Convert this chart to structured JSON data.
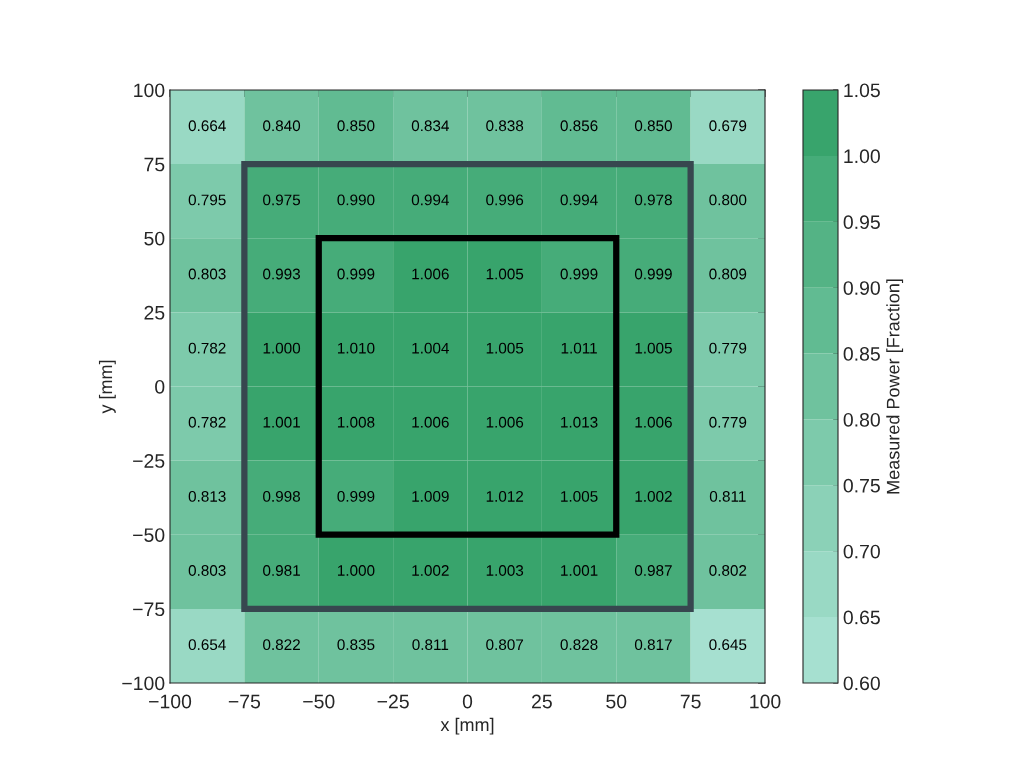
{
  "chart_data": {
    "type": "heatmap",
    "xlabel": "x [mm]",
    "ylabel": "y [mm]",
    "clabel": "Measured Power [Fraction]",
    "xlim": [
      -100,
      100
    ],
    "ylim": [
      -100,
      100
    ],
    "xticks": [
      {
        "value": -100,
        "label": "−100"
      },
      {
        "value": -75,
        "label": "−75"
      },
      {
        "value": -50,
        "label": "−50"
      },
      {
        "value": -25,
        "label": "−25"
      },
      0,
      25,
      50,
      75,
      100
    ],
    "yticks": [
      {
        "value": -100,
        "label": "−100"
      },
      {
        "value": -75,
        "label": "−75"
      },
      {
        "value": -50,
        "label": "−50"
      },
      {
        "value": -25,
        "label": "−25"
      },
      0,
      25,
      50,
      75,
      100
    ],
    "colors": [
      "#a6e0d0",
      "#38a46c"
    ],
    "clim": [
      0.6,
      1.05
    ],
    "cticks": [
      {
        "value": 0.6,
        "label": "0.60"
      },
      {
        "value": 0.65,
        "label": "0.65"
      },
      {
        "value": 0.7,
        "label": "0.70"
      },
      {
        "value": 0.75,
        "label": "0.75"
      },
      {
        "value": 0.8,
        "label": "0.80"
      },
      {
        "value": 0.85,
        "label": "0.85"
      },
      {
        "value": 0.9,
        "label": "0.90"
      },
      {
        "value": 0.95,
        "label": "0.95"
      },
      {
        "value": 1.0,
        "label": "1.00"
      },
      {
        "value": 1.05,
        "label": "1.05"
      }
    ],
    "cells": [
      [
        0.664,
        0.84,
        0.85,
        0.834,
        0.838,
        0.856,
        0.85,
        0.679
      ],
      [
        0.795,
        0.975,
        0.99,
        0.994,
        0.996,
        0.994,
        0.978,
        0.8
      ],
      [
        0.803,
        0.993,
        0.999,
        1.006,
        1.005,
        0.999,
        0.999,
        0.809
      ],
      [
        0.782,
        1.0,
        1.01,
        1.004,
        1.005,
        1.011,
        1.005,
        0.779
      ],
      [
        0.782,
        1.001,
        1.008,
        1.006,
        1.006,
        1.013,
        1.006,
        0.779
      ],
      [
        0.813,
        0.998,
        0.999,
        1.009,
        1.012,
        1.005,
        1.002,
        0.811
      ],
      [
        0.803,
        0.981,
        1.0,
        1.002,
        1.003,
        1.001,
        0.987,
        0.802
      ],
      [
        0.654,
        0.822,
        0.835,
        0.811,
        0.807,
        0.828,
        0.817,
        0.645
      ]
    ],
    "cell_labels": [
      [
        "0.664",
        "0.840",
        "0.850",
        "0.834",
        "0.838",
        "0.856",
        "0.850",
        "0.679"
      ],
      [
        "0.795",
        "0.975",
        "0.990",
        "0.994",
        "0.996",
        "0.994",
        "0.978",
        "0.800"
      ],
      [
        "0.803",
        "0.993",
        "0.999",
        "1.006",
        "1.005",
        "0.999",
        "0.999",
        "0.809"
      ],
      [
        "0.782",
        "1.000",
        "1.010",
        "1.004",
        "1.005",
        "1.011",
        "1.005",
        "0.779"
      ],
      [
        "0.782",
        "1.001",
        "1.008",
        "1.006",
        "1.006",
        "1.013",
        "1.006",
        "0.779"
      ],
      [
        "0.813",
        "0.998",
        "0.999",
        "1.009",
        "1.012",
        "1.005",
        "1.002",
        "0.811"
      ],
      [
        "0.803",
        "0.981",
        "1.000",
        "1.002",
        "1.003",
        "1.001",
        "0.987",
        "0.802"
      ],
      [
        "0.654",
        "0.822",
        "0.835",
        "0.811",
        "0.807",
        "0.828",
        "0.817",
        "0.645"
      ]
    ]
  }
}
